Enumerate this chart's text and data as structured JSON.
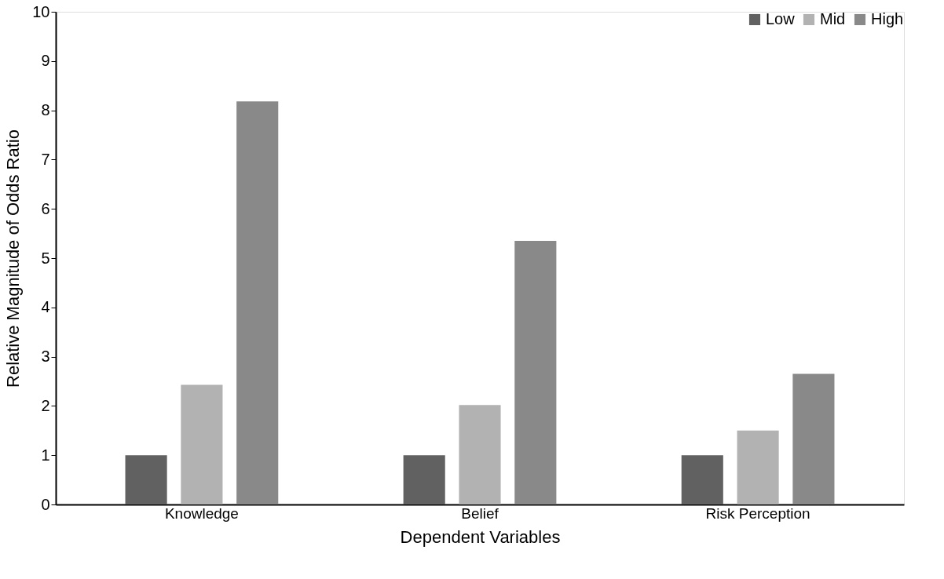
{
  "chart_data": {
    "type": "bar",
    "xlabel": "Dependent Variables",
    "ylabel": "Relative Magnitude of Odds Ratio",
    "categories": [
      "Knowledge",
      "Belief",
      "Risk Perception"
    ],
    "series": [
      {
        "name": "Low",
        "color": "#616161",
        "values": [
          1.0,
          1.0,
          1.0
        ]
      },
      {
        "name": "Mid",
        "color": "#b2b2b2",
        "values": [
          2.43,
          2.02,
          1.5
        ]
      },
      {
        "name": "High",
        "color": "#898989",
        "values": [
          8.18,
          5.35,
          2.65
        ]
      }
    ],
    "ylim": [
      0,
      10
    ],
    "yticks": [
      0,
      1,
      2,
      3,
      4,
      5,
      6,
      7,
      8,
      9,
      10
    ],
    "grid": false,
    "legend": "top right"
  }
}
